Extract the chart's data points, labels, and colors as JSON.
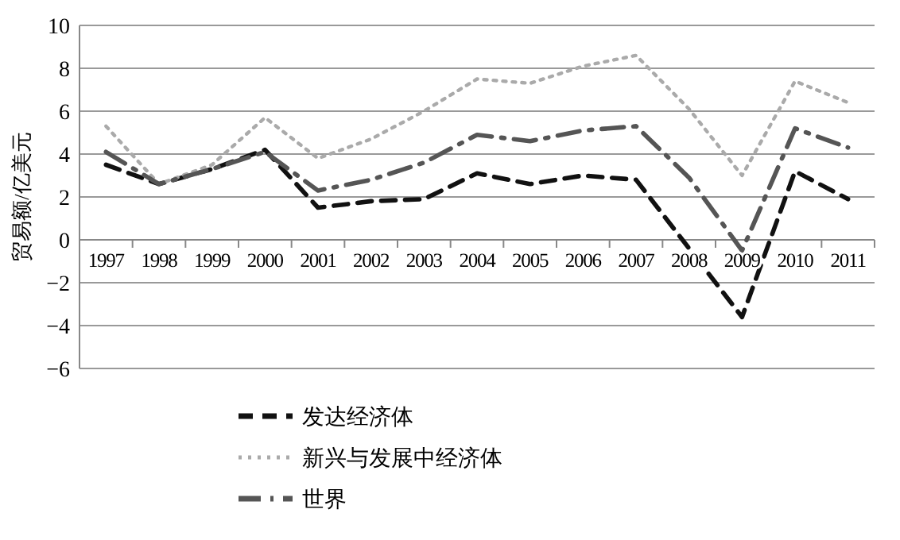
{
  "chart_data": {
    "type": "line",
    "ylabel": "贸易额/亿美元",
    "categories": [
      "1997",
      "1998",
      "1999",
      "2000",
      "2001",
      "2002",
      "2003",
      "2004",
      "2005",
      "2006",
      "2007",
      "2008",
      "2009",
      "2010",
      "2011"
    ],
    "series": [
      {
        "name": "发达经济体",
        "color": "#111111",
        "line_style": "dashed",
        "values": [
          3.5,
          2.6,
          3.3,
          4.2,
          1.5,
          1.8,
          1.9,
          3.1,
          2.6,
          3.0,
          2.8,
          -0.4,
          -3.6,
          3.2,
          1.9
        ]
      },
      {
        "name": "新兴与发展中经济体",
        "color": "#aaaaaa",
        "line_style": "dotted",
        "values": [
          5.3,
          2.6,
          3.5,
          5.7,
          3.8,
          4.7,
          6.0,
          7.5,
          7.3,
          8.1,
          8.6,
          6.1,
          3.0,
          7.4,
          6.4
        ]
      },
      {
        "name": "世界",
        "color": "#555555",
        "line_style": "dashdot",
        "values": [
          4.1,
          2.6,
          3.3,
          4.1,
          2.3,
          2.8,
          3.6,
          4.9,
          4.6,
          5.1,
          5.3,
          2.9,
          -0.5,
          5.2,
          4.3
        ]
      }
    ],
    "ylim": [
      -6,
      10
    ],
    "yticks": [
      {
        "value": -6,
        "label": "−6"
      },
      {
        "value": -4,
        "label": "−4"
      },
      {
        "value": -2,
        "label": "−2"
      },
      0,
      2,
      4,
      6,
      8,
      10
    ],
    "grid": "y",
    "legend": "bottom",
    "marker": "none"
  }
}
